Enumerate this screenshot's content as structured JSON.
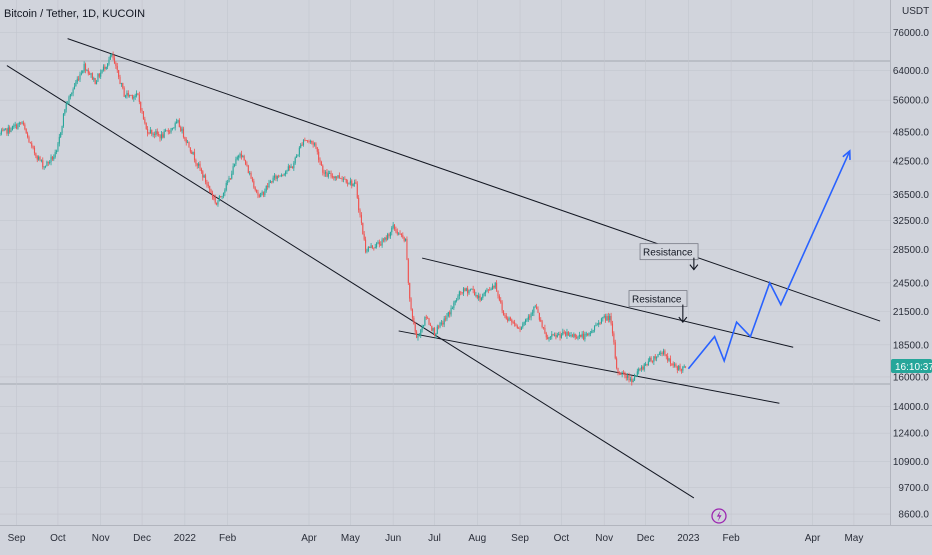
{
  "header": {
    "symbol_title": "Bitcoin / Tether, 1D, KUCOIN",
    "currency": "USDT"
  },
  "price_badge": "16:10:37",
  "colors": {
    "background": "#d1d4dc",
    "up": "#26a69a",
    "down": "#ef5350",
    "projection": "#2962ff",
    "trendline": "#131722",
    "badge": "#26a69a",
    "flash_icon": "#9c27b0"
  },
  "icons": [
    "flash-icon",
    "down-arrow-icon"
  ],
  "chart_data": {
    "type": "candlestick",
    "title": "Bitcoin / Tether, 1D, KUCOIN",
    "price_scale": "log",
    "ylim": [
      8000,
      85000
    ],
    "xlim": [
      "2021-08-20",
      "2023-05-25"
    ],
    "y_ticks": [
      "76000.0",
      "64000.0",
      "56000.0",
      "48500.0",
      "42500.0",
      "36500.0",
      "32500.0",
      "28500.0",
      "24500.0",
      "21500.0",
      "18500.0",
      "16000.0",
      "14000.0",
      "12400.0",
      "10900.0",
      "9700.0",
      "8600.0"
    ],
    "x_ticks": [
      {
        "label": "Sep",
        "date": "2021-09-01"
      },
      {
        "label": "Oct",
        "date": "2021-10-01"
      },
      {
        "label": "Nov",
        "date": "2021-11-01"
      },
      {
        "label": "Dec",
        "date": "2021-12-01"
      },
      {
        "label": "2022",
        "date": "2022-01-01"
      },
      {
        "label": "Feb",
        "date": "2022-02-01"
      },
      {
        "label": "Apr",
        "date": "2022-04-01"
      },
      {
        "label": "May",
        "date": "2022-05-01"
      },
      {
        "label": "Jun",
        "date": "2022-06-01"
      },
      {
        "label": "Jul",
        "date": "2022-07-01"
      },
      {
        "label": "Aug",
        "date": "2022-08-01"
      },
      {
        "label": "Sep",
        "date": "2022-09-01"
      },
      {
        "label": "Oct",
        "date": "2022-10-01"
      },
      {
        "label": "Nov",
        "date": "2022-11-01"
      },
      {
        "label": "Dec",
        "date": "2022-12-01"
      },
      {
        "label": "2023",
        "date": "2023-01-01"
      },
      {
        "label": "Feb",
        "date": "2023-02-01"
      },
      {
        "label": "Apr",
        "date": "2023-04-01"
      },
      {
        "label": "May",
        "date": "2023-05-01"
      }
    ],
    "price_path": [
      [
        "2021-08-20",
        48000
      ],
      [
        "2021-09-05",
        50500
      ],
      [
        "2021-09-12",
        45000
      ],
      [
        "2021-09-21",
        41500
      ],
      [
        "2021-09-30",
        44000
      ],
      [
        "2021-10-06",
        54000
      ],
      [
        "2021-10-15",
        61500
      ],
      [
        "2021-10-20",
        65500
      ],
      [
        "2021-10-28",
        61000
      ],
      [
        "2021-11-09",
        68500
      ],
      [
        "2021-11-18",
        57500
      ],
      [
        "2021-11-28",
        57000
      ],
      [
        "2021-12-04",
        49000
      ],
      [
        "2021-12-15",
        47500
      ],
      [
        "2021-12-27",
        50500
      ],
      [
        "2022-01-05",
        45000
      ],
      [
        "2022-01-10",
        42000
      ],
      [
        "2022-01-24",
        35000
      ],
      [
        "2022-02-01",
        38500
      ],
      [
        "2022-02-10",
        44500
      ],
      [
        "2022-02-24",
        36000
      ],
      [
        "2022-03-05",
        39000
      ],
      [
        "2022-03-20",
        41500
      ],
      [
        "2022-03-28",
        47000
      ],
      [
        "2022-04-05",
        46000
      ],
      [
        "2022-04-12",
        40000
      ],
      [
        "2022-04-25",
        39500
      ],
      [
        "2022-05-05",
        38000
      ],
      [
        "2022-05-07",
        34500
      ],
      [
        "2022-05-12",
        28500
      ],
      [
        "2022-05-25",
        29500
      ],
      [
        "2022-06-01",
        31500
      ],
      [
        "2022-06-10",
        29500
      ],
      [
        "2022-06-13",
        22500
      ],
      [
        "2022-06-18",
        19000
      ],
      [
        "2022-06-25",
        21000
      ],
      [
        "2022-07-01",
        19500
      ],
      [
        "2022-07-10",
        21000
      ],
      [
        "2022-07-20",
        23500
      ],
      [
        "2022-07-28",
        23800
      ],
      [
        "2022-08-02",
        22800
      ],
      [
        "2022-08-14",
        24400
      ],
      [
        "2022-08-20",
        21200
      ],
      [
        "2022-09-01",
        20000
      ],
      [
        "2022-09-12",
        22000
      ],
      [
        "2022-09-20",
        19000
      ],
      [
        "2022-10-01",
        19400
      ],
      [
        "2022-10-20",
        19200
      ],
      [
        "2022-10-29",
        20700
      ],
      [
        "2022-11-05",
        21000
      ],
      [
        "2022-11-08",
        18500
      ],
      [
        "2022-11-10",
        16500
      ],
      [
        "2022-11-21",
        15800
      ],
      [
        "2022-12-01",
        17000
      ],
      [
        "2022-12-14",
        18000
      ],
      [
        "2022-12-20",
        16800
      ],
      [
        "2022-12-30",
        16550
      ]
    ],
    "trendlines": [
      {
        "name": "upper-resistance",
        "from": [
          "2021-10-08",
          74000
        ],
        "to": [
          "2023-05-20",
          20600
        ]
      },
      {
        "name": "mid-resistance",
        "from": [
          "2022-06-22",
          27400
        ],
        "to": [
          "2023-03-18",
          18300
        ]
      },
      {
        "name": "mid-support",
        "from": [
          "2022-06-05",
          19700
        ],
        "to": [
          "2023-03-08",
          14200
        ]
      },
      {
        "name": "lower-support",
        "from": [
          "2021-08-25",
          65500
        ],
        "to": [
          "2023-01-05",
          9250
        ]
      }
    ],
    "annotations": [
      {
        "text": "Resistance",
        "at": [
          "2022-12-18",
          27700
        ],
        "arrow_to": [
          "2023-01-05",
          26000
        ]
      },
      {
        "text": "Resistance",
        "at": [
          "2022-12-10",
          22400
        ],
        "arrow_to": [
          "2022-12-28",
          20500
        ]
      }
    ],
    "projection": {
      "color": "#2962ff",
      "points": [
        [
          "2023-01-01",
          16600
        ],
        [
          "2023-01-20",
          19200
        ],
        [
          "2023-01-27",
          17200
        ],
        [
          "2023-02-05",
          20500
        ],
        [
          "2023-02-15",
          19200
        ],
        [
          "2023-03-01",
          24500
        ],
        [
          "2023-03-09",
          22200
        ],
        [
          "2023-04-28",
          44500
        ]
      ]
    }
  }
}
